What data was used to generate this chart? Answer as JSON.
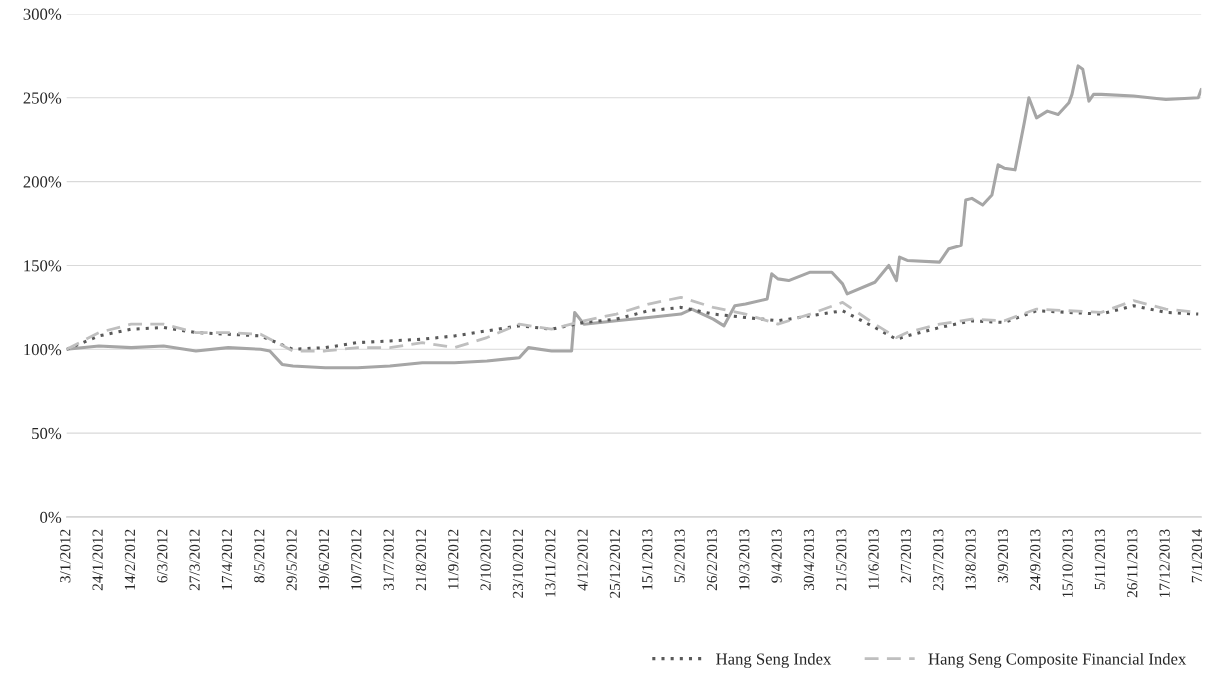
{
  "chart_data": {
    "type": "line",
    "x": [
      "2012-01-03",
      "2012-01-24",
      "2012-02-14",
      "2012-03-06",
      "2012-03-27",
      "2012-04-17",
      "2012-05-08",
      "2012-05-29",
      "2012-06-19",
      "2012-07-10",
      "2012-07-31",
      "2012-08-21",
      "2012-09-11",
      "2012-10-02",
      "2012-10-23",
      "2012-11-13",
      "2012-12-04",
      "2012-12-25",
      "2013-01-15",
      "2013-02-05",
      "2013-02-26",
      "2013-03-19",
      "2013-04-09",
      "2013-04-30",
      "2013-05-21",
      "2013-06-11",
      "2013-06-25",
      "2013-07-02",
      "2013-07-23",
      "2013-08-13",
      "2013-09-03",
      "2013-09-24",
      "2013-10-15",
      "2013-11-05",
      "2013-11-26",
      "2013-12-17",
      "2014-01-07"
    ],
    "series": [
      {
        "color": "#a6a6a6",
        "line_style": "solid",
        "x": [
          "2012-01-03",
          "2012-01-24",
          "2012-02-14",
          "2012-03-06",
          "2012-03-27",
          "2012-04-17",
          "2012-05-08",
          "2012-05-14",
          "2012-05-22",
          "2012-05-29",
          "2012-06-19",
          "2012-07-10",
          "2012-07-31",
          "2012-08-21",
          "2012-09-11",
          "2012-10-02",
          "2012-10-23",
          "2012-10-29",
          "2012-11-13",
          "2012-11-26",
          "2012-11-28",
          "2012-12-04",
          "2012-12-25",
          "2013-01-15",
          "2013-02-05",
          "2013-02-12",
          "2013-02-26",
          "2013-03-05",
          "2013-03-12",
          "2013-03-19",
          "2013-04-02",
          "2013-04-05",
          "2013-04-09",
          "2013-04-16",
          "2013-04-30",
          "2013-05-14",
          "2013-05-21",
          "2013-05-24",
          "2013-06-11",
          "2013-06-20",
          "2013-06-25",
          "2013-06-27",
          "2013-07-02",
          "2013-07-23",
          "2013-07-29",
          "2013-08-06",
          "2013-08-09",
          "2013-08-13",
          "2013-08-20",
          "2013-08-26",
          "2013-08-30",
          "2013-09-03",
          "2013-09-10",
          "2013-09-16",
          "2013-09-19",
          "2013-09-24",
          "2013-10-01",
          "2013-10-08",
          "2013-10-15",
          "2013-10-17",
          "2013-10-21",
          "2013-10-24",
          "2013-10-28",
          "2013-10-31",
          "2013-11-05",
          "2013-11-26",
          "2013-12-17",
          "2014-01-07",
          "2014-01-09"
        ],
        "values": [
          100,
          102,
          101,
          102,
          99,
          101,
          100,
          99,
          91,
          90,
          89,
          89,
          90,
          92,
          92,
          93,
          95,
          101,
          99,
          99,
          122,
          115,
          117,
          119,
          121,
          124,
          118,
          114,
          126,
          127,
          130,
          145,
          142,
          141,
          146,
          146,
          139,
          133,
          140,
          150,
          141,
          155,
          153,
          152,
          160,
          162,
          189,
          190,
          186,
          192,
          210,
          208,
          207,
          235,
          250,
          238,
          242,
          240,
          247,
          252,
          269,
          267,
          248,
          252,
          252,
          251,
          249,
          250,
          255
        ]
      },
      {
        "name": "Hang Seng Index",
        "color": "#595959",
        "line_style": "dotted",
        "values": [
          100,
          108,
          112,
          113,
          110,
          109,
          108,
          100,
          101,
          104,
          105,
          106,
          108,
          111,
          114,
          112,
          116,
          118,
          123,
          125,
          121,
          119,
          117,
          120,
          123,
          113,
          106,
          108,
          113,
          117,
          116,
          123,
          122,
          121,
          126,
          122,
          121
        ]
      },
      {
        "name": "Hang Seng Composite Financial Index",
        "color": "#bfbfbf",
        "line_style": "dashed",
        "values": [
          100,
          110,
          115,
          115,
          110,
          110,
          109,
          99,
          99,
          101,
          101,
          104,
          101,
          107,
          115,
          112,
          117,
          121,
          127,
          131,
          125,
          121,
          115,
          121,
          128,
          115,
          107,
          110,
          115,
          118,
          117,
          124,
          123,
          122,
          129,
          124,
          122
        ]
      }
    ],
    "xlim": [
      "2012-01-03",
      "2014-01-09"
    ],
    "xticks": [
      {
        "value": "2012-01-03",
        "label": "3/1/2012"
      },
      {
        "value": "2012-01-24",
        "label": "24/1/2012"
      },
      {
        "value": "2012-02-14",
        "label": "14/2/2012"
      },
      {
        "value": "2012-03-06",
        "label": "6/3/2012"
      },
      {
        "value": "2012-03-27",
        "label": "27/3/2012"
      },
      {
        "value": "2012-04-17",
        "label": "17/4/2012"
      },
      {
        "value": "2012-05-08",
        "label": "8/5/2012"
      },
      {
        "value": "2012-05-29",
        "label": "29/5/2012"
      },
      {
        "value": "2012-06-19",
        "label": "19/6/2012"
      },
      {
        "value": "2012-07-10",
        "label": "10/7/2012"
      },
      {
        "value": "2012-07-31",
        "label": "31/7/2012"
      },
      {
        "value": "2012-08-21",
        "label": "21/8/2012"
      },
      {
        "value": "2012-09-11",
        "label": "11/9/2012"
      },
      {
        "value": "2012-10-02",
        "label": "2/10/2012"
      },
      {
        "value": "2012-10-23",
        "label": "23/10/2012"
      },
      {
        "value": "2012-11-13",
        "label": "13/11/2012"
      },
      {
        "value": "2012-12-04",
        "label": "4/12/2012"
      },
      {
        "value": "2012-12-25",
        "label": "25/12/2012"
      },
      {
        "value": "2013-01-15",
        "label": "15/1/2013"
      },
      {
        "value": "2013-02-05",
        "label": "5/2/2013"
      },
      {
        "value": "2013-02-26",
        "label": "26/2/2013"
      },
      {
        "value": "2013-03-19",
        "label": "19/3/2013"
      },
      {
        "value": "2013-04-09",
        "label": "9/4/2013"
      },
      {
        "value": "2013-04-30",
        "label": "30/4/2013"
      },
      {
        "value": "2013-05-21",
        "label": "21/5/2013"
      },
      {
        "value": "2013-06-11",
        "label": "11/6/2013"
      },
      {
        "value": "2013-07-02",
        "label": "2/7/2013"
      },
      {
        "value": "2013-07-23",
        "label": "23/7/2013"
      },
      {
        "value": "2013-08-13",
        "label": "13/8/2013"
      },
      {
        "value": "2013-09-03",
        "label": "3/9/2013"
      },
      {
        "value": "2013-09-24",
        "label": "24/9/2013"
      },
      {
        "value": "2013-10-15",
        "label": "15/10/2013"
      },
      {
        "value": "2013-11-05",
        "label": "5/11/2013"
      },
      {
        "value": "2013-11-26",
        "label": "26/11/2013"
      },
      {
        "value": "2013-12-17",
        "label": "17/12/2013"
      },
      {
        "value": "2014-01-07",
        "label": "7/1/2014"
      }
    ],
    "ylim": [
      0,
      300
    ],
    "yticks": [
      {
        "value": 0,
        "label": "0%"
      },
      {
        "value": 50,
        "label": "50%"
      },
      {
        "value": 100,
        "label": "100%"
      },
      {
        "value": 150,
        "label": "150%"
      },
      {
        "value": 200,
        "label": "200%"
      },
      {
        "value": 250,
        "label": "250%"
      },
      {
        "value": 300,
        "label": "300%"
      }
    ],
    "grid": "y",
    "legend": "bottom right",
    "marker": "none"
  }
}
